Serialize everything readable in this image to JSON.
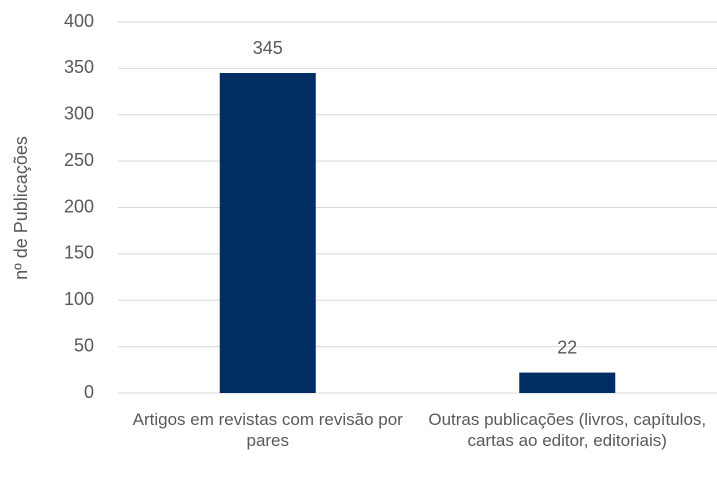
{
  "chart_data": {
    "type": "bar",
    "ylabel": "nº de Publicações",
    "categories": [
      "Artigos em revistas com revisão por pares",
      "Outras publicações (livros, capítulos, cartas ao editor, editoriais)"
    ],
    "values": [
      345,
      22
    ],
    "color": "#002d62",
    "ylim": [
      0,
      400
    ],
    "yticks": [
      0,
      50,
      100,
      150,
      200,
      250,
      300,
      350,
      400
    ],
    "grid": true
  }
}
